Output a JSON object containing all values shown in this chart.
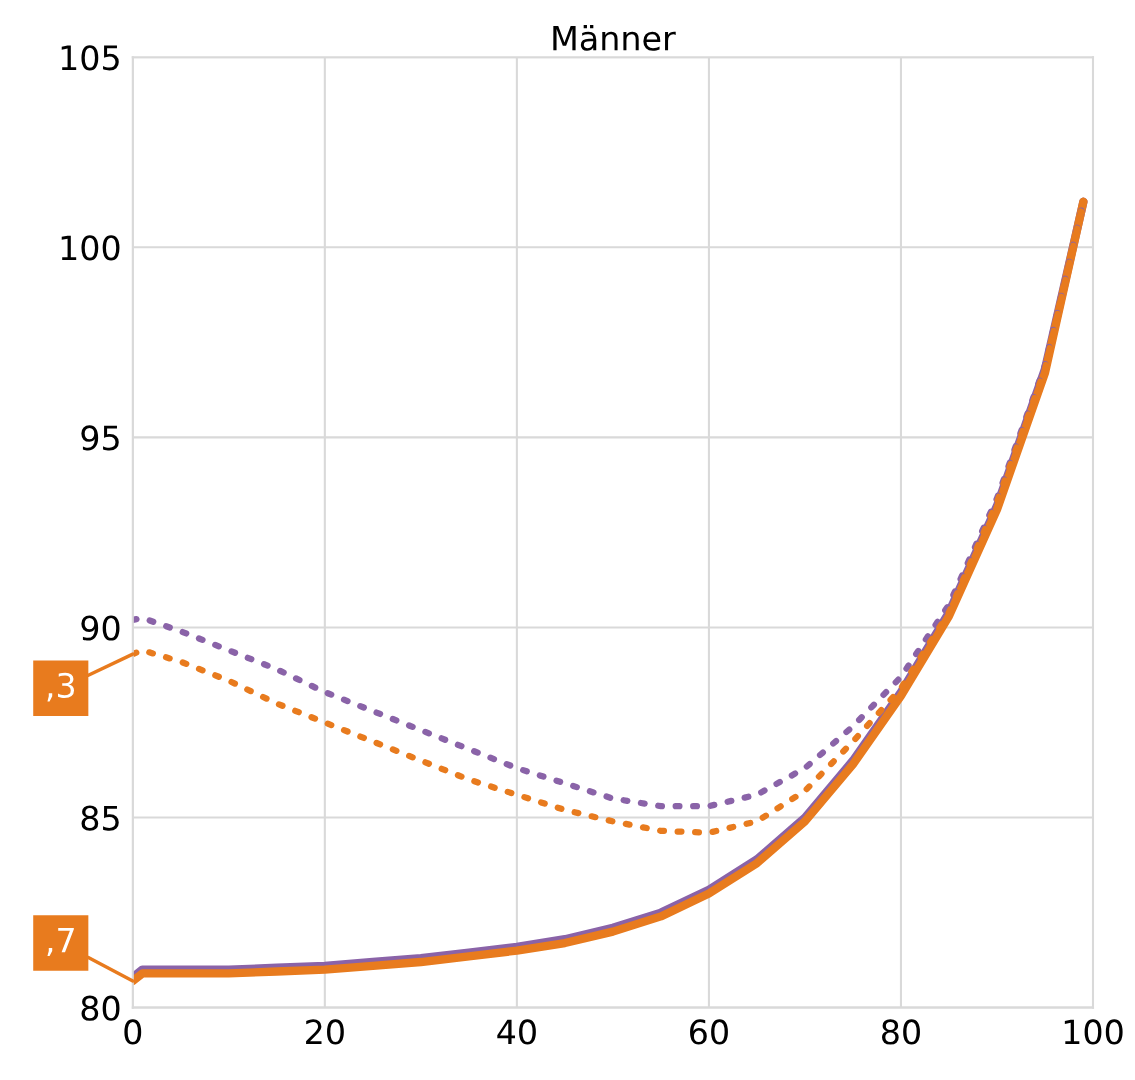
{
  "chart_data": {
    "type": "line",
    "title": "Männer",
    "x": [
      0,
      1,
      5,
      10,
      15,
      20,
      25,
      30,
      35,
      40,
      45,
      50,
      55,
      60,
      65,
      70,
      75,
      80,
      85,
      90,
      95,
      99
    ],
    "series": [
      {
        "color": "#8a63a8",
        "line_style": "solid",
        "values": [
          80.8,
          81.0,
          81.0,
          81.0,
          81.05,
          81.1,
          81.2,
          81.3,
          81.45,
          81.6,
          81.8,
          82.1,
          82.5,
          83.1,
          83.9,
          85.0,
          86.5,
          88.3,
          90.4,
          93.2,
          96.8,
          101.2
        ]
      },
      {
        "color": "#e87b1e",
        "line_style": "solid",
        "values": [
          80.7,
          80.9,
          80.9,
          80.9,
          80.95,
          81.0,
          81.1,
          81.2,
          81.35,
          81.5,
          81.7,
          82.0,
          82.4,
          83.0,
          83.8,
          84.9,
          86.4,
          88.2,
          90.3,
          93.1,
          96.7,
          101.2
        ]
      },
      {
        "color": "#8a63a8",
        "line_style": "dotted",
        "values": [
          90.2,
          90.25,
          89.9,
          89.4,
          88.9,
          88.3,
          87.8,
          87.3,
          86.8,
          86.3,
          85.9,
          85.5,
          85.3,
          85.3,
          85.6,
          86.3,
          87.4,
          88.7,
          90.6,
          93.4,
          96.9,
          101.2
        ]
      },
      {
        "color": "#e87b1e",
        "line_style": "dotted",
        "values": [
          89.3,
          89.4,
          89.1,
          88.6,
          88.0,
          87.5,
          87.0,
          86.5,
          86.0,
          85.6,
          85.2,
          84.9,
          84.65,
          84.6,
          84.9,
          85.7,
          87.0,
          88.4,
          90.4,
          93.3,
          96.8,
          101.2
        ]
      }
    ],
    "annotations": [
      {
        "text": ",3",
        "x": 0,
        "y": 89.3
      },
      {
        "text": ",7",
        "x": 0,
        "y": 80.7
      }
    ],
    "xlim": [
      0,
      100
    ],
    "xticks": [
      0,
      20,
      40,
      60,
      80,
      100
    ],
    "ylim": [
      80,
      105
    ],
    "yticks": [
      80,
      85,
      90,
      95,
      100,
      105
    ],
    "grid": true,
    "legend": false
  }
}
